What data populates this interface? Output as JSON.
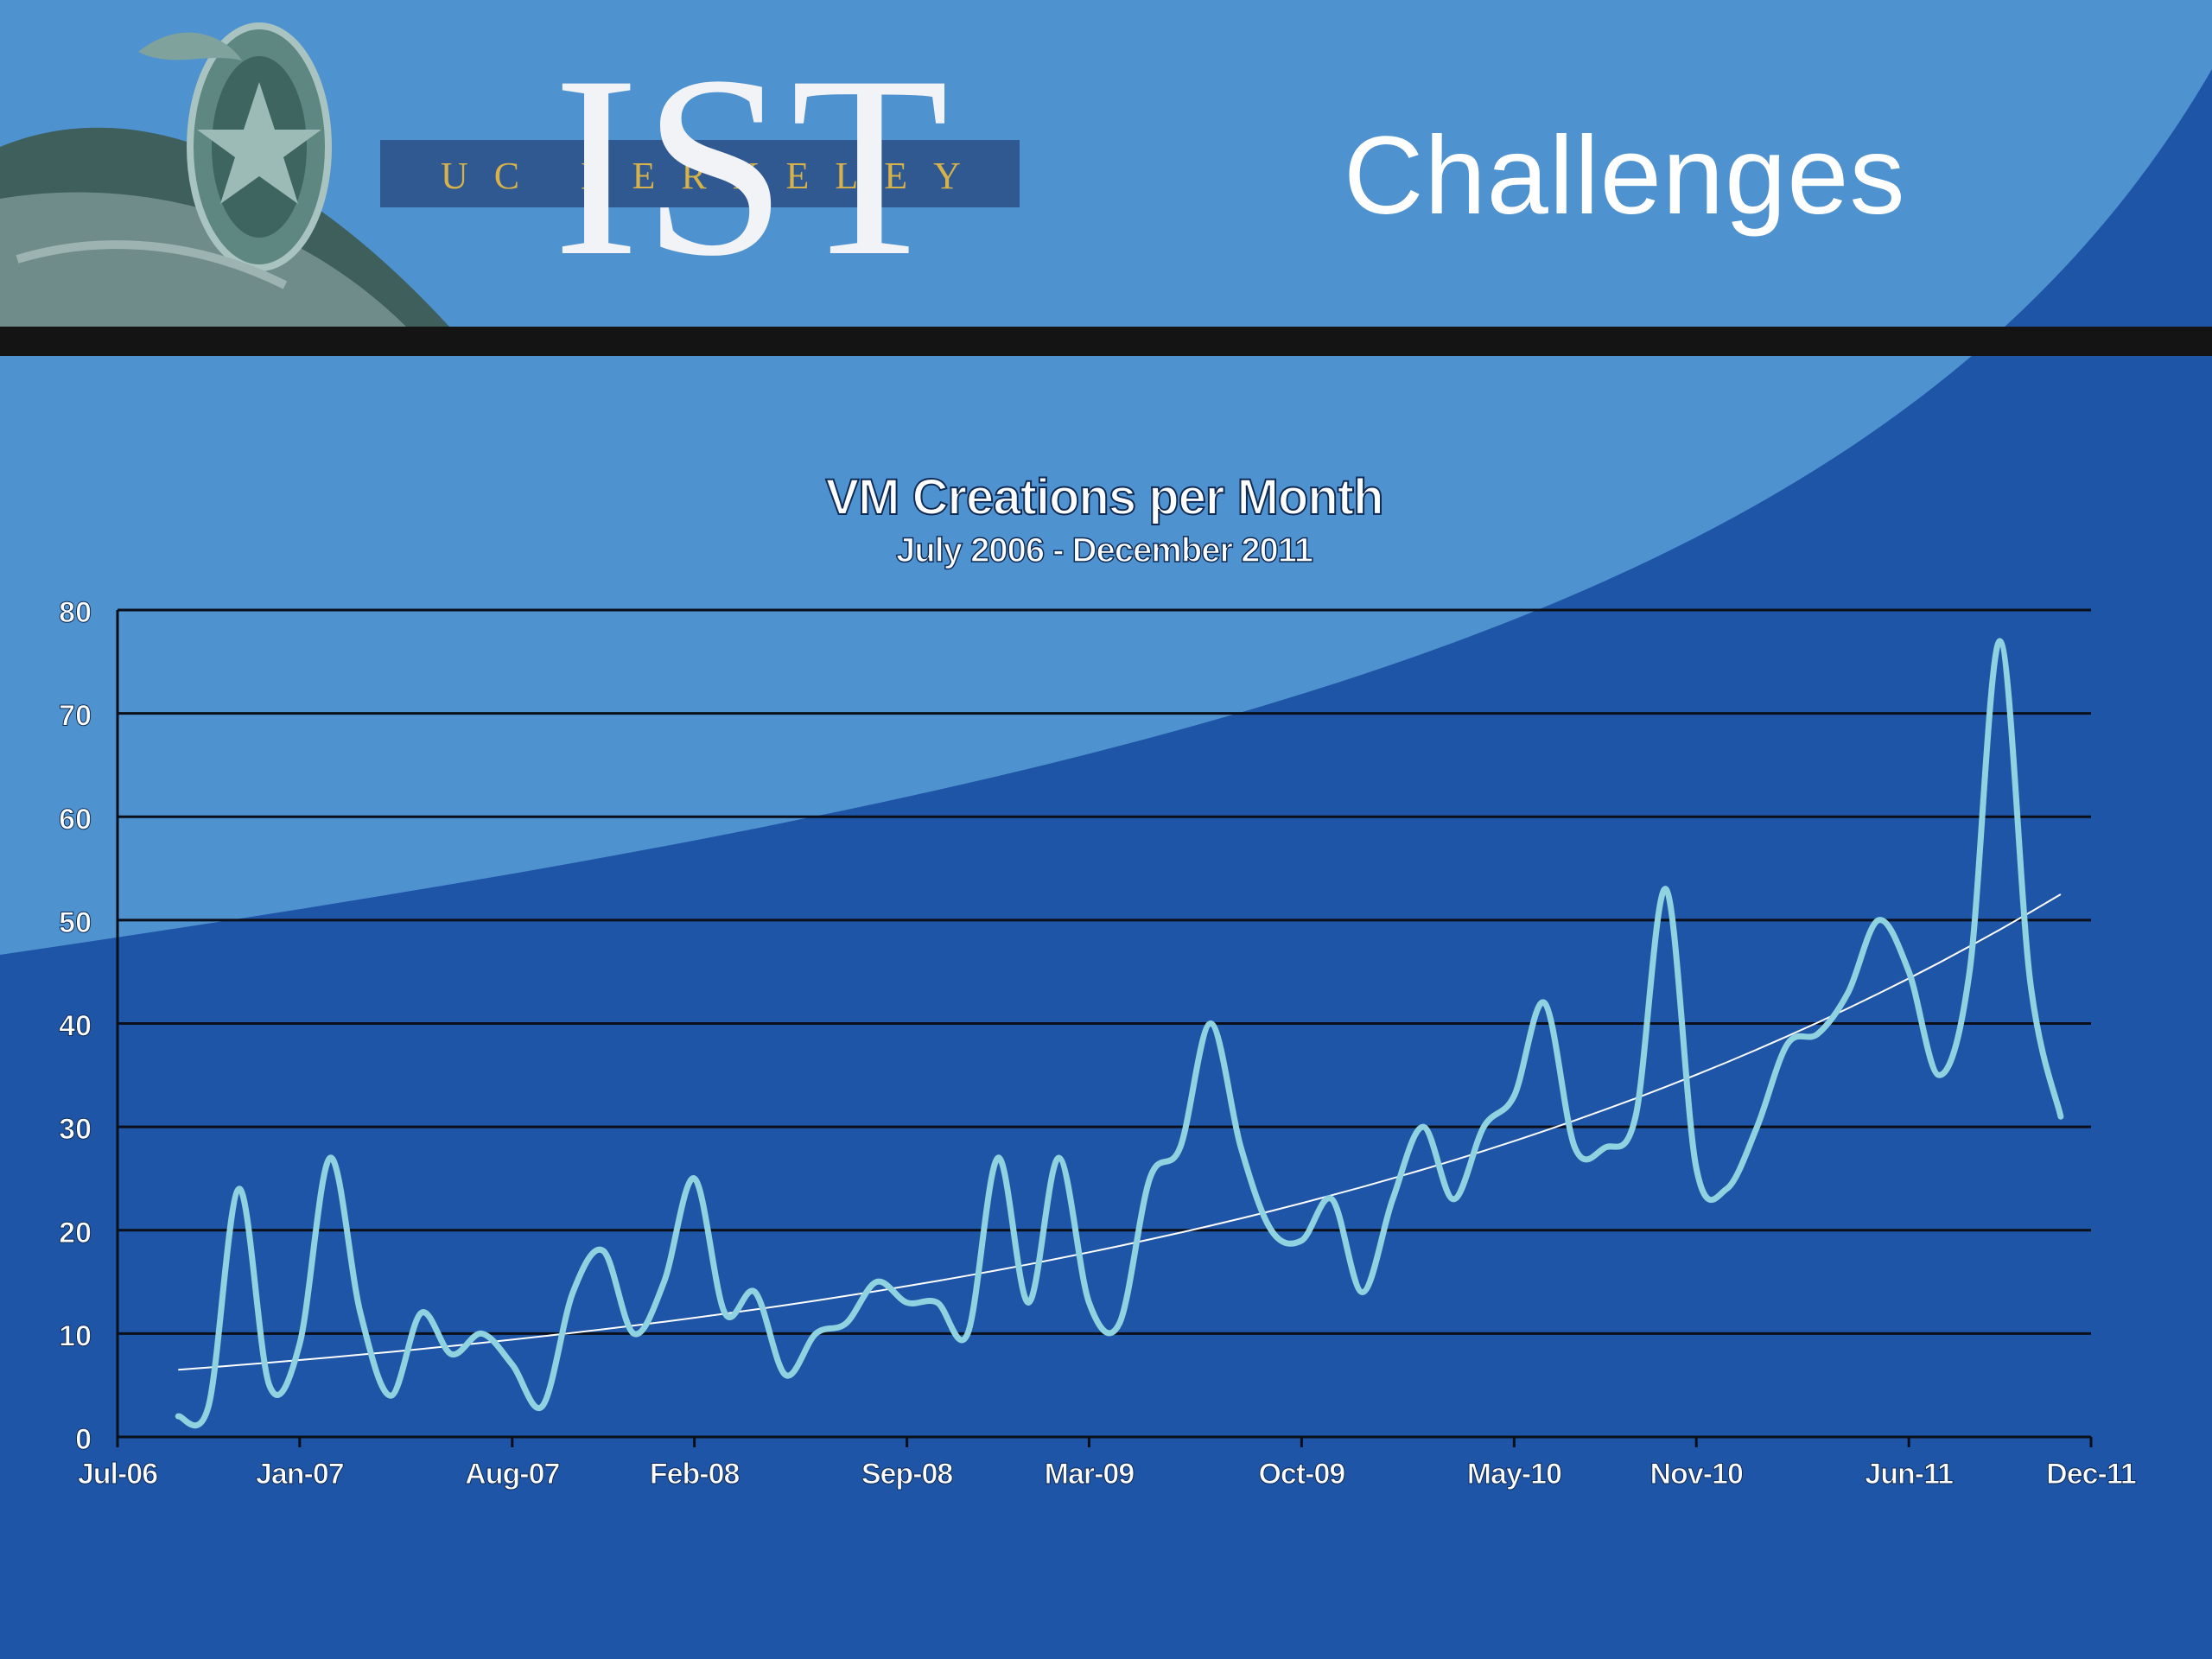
{
  "slide": {
    "title": "Challenges",
    "logo": {
      "university": "UC BERKELEY",
      "unit": "IST"
    },
    "colors": {
      "background": "#1f55a6",
      "swoosh": "#4f92d0",
      "divider": "#141414",
      "series": "#8fd3e0",
      "trend": "#ffffff"
    }
  },
  "chart_data": {
    "type": "line",
    "title": "VM Creations per Month",
    "subtitle": "July 2006 - December 2011",
    "xlabel": "",
    "ylabel": "",
    "ylim": [
      0,
      80
    ],
    "y_ticks": [
      "0",
      "10",
      "20",
      "30",
      "40",
      "50",
      "60",
      "70",
      "80"
    ],
    "x_ticks": [
      "Jul-06",
      "Jan-07",
      "Aug-07",
      "Feb-08",
      "Sep-08",
      "Mar-09",
      "Oct-09",
      "May-10",
      "Nov-10",
      "Jun-11",
      "Dec-11"
    ],
    "grid": true,
    "legend": "none",
    "x_months": [
      "Sep-06",
      "Oct-06",
      "Nov-06",
      "Dec-06",
      "Jan-07",
      "Feb-07",
      "Mar-07",
      "Apr-07",
      "May-07",
      "Jun-07",
      "Jul-07",
      "Aug-07",
      "Sep-07",
      "Oct-07",
      "Nov-07",
      "Dec-07",
      "Jan-08",
      "Feb-08",
      "Mar-08",
      "Apr-08",
      "May-08",
      "Jun-08",
      "Jul-08",
      "Aug-08",
      "Sep-08",
      "Oct-08",
      "Nov-08",
      "Dec-08",
      "Jan-09",
      "Feb-09",
      "Mar-09",
      "Apr-09",
      "May-09",
      "Jun-09",
      "Jul-09",
      "Aug-09",
      "Sep-09",
      "Oct-09",
      "Nov-09",
      "Dec-09",
      "Jan-10",
      "Feb-10",
      "Mar-10",
      "Apr-10",
      "May-10",
      "Jun-10",
      "Jul-10",
      "Aug-10",
      "Sep-10",
      "Oct-10",
      "Nov-10",
      "Dec-10",
      "Jan-11",
      "Feb-11",
      "Mar-11",
      "Apr-11",
      "May-11",
      "Jun-11",
      "Jul-11",
      "Aug-11",
      "Sep-11",
      "Oct-11",
      "Nov-11"
    ],
    "series": [
      {
        "values": [
          2,
          3,
          24,
          5,
          9,
          27,
          12,
          4,
          12,
          8,
          10,
          7,
          3,
          14,
          18,
          10,
          15,
          25,
          12,
          14,
          6,
          10,
          11,
          15,
          13,
          13,
          10,
          27,
          13,
          27,
          13,
          11,
          25,
          28,
          40,
          28,
          20,
          19,
          23,
          14,
          23,
          30,
          23,
          30,
          33,
          42,
          28,
          28,
          31,
          53,
          26,
          24,
          30,
          38,
          39,
          43,
          50,
          45,
          35,
          45,
          77,
          44,
          31
        ]
      },
      {
        "type": "trendline",
        "values": [
          6.5,
          52.5
        ]
      }
    ]
  }
}
